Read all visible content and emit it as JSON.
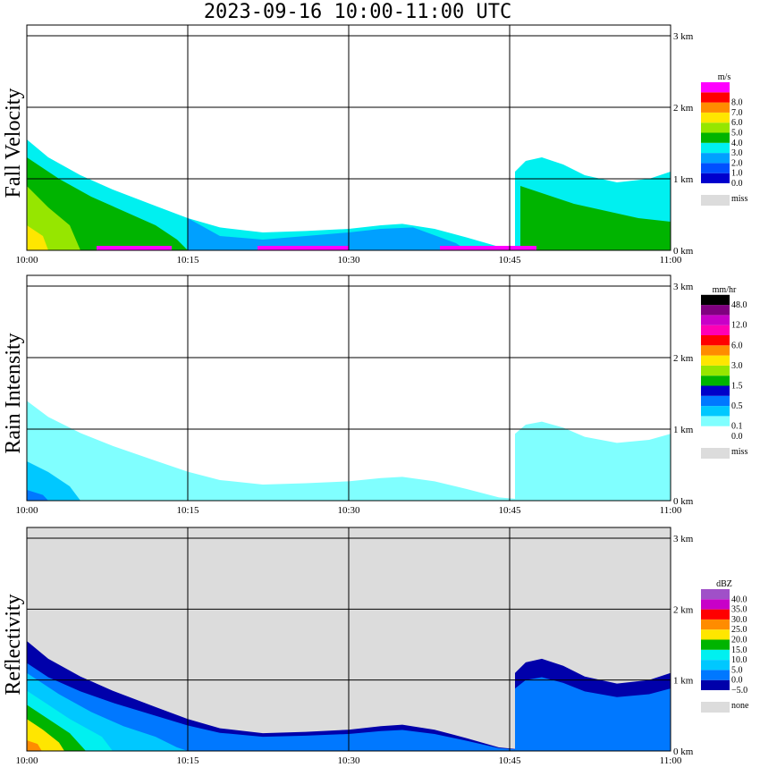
{
  "title": "2023-09-16   10:00-11:00 UTC",
  "x_tick_labels": [
    "10:00",
    "10:15",
    "10:30",
    "10:45",
    "11:00"
  ],
  "y_tick_labels": [
    "0 km",
    "1 km",
    "2 km",
    "3 km"
  ],
  "panels": [
    {
      "label": "Fall Velocity",
      "unit": "m/s",
      "missing_label": "miss",
      "background": "#ffffff",
      "scale": [
        {
          "label": "0.0",
          "color": "#0000cd"
        },
        {
          "label": "1.0",
          "color": "#0050ff"
        },
        {
          "label": "2.0",
          "color": "#00a0ff"
        },
        {
          "label": "3.0",
          "color": "#00f0f0"
        },
        {
          "label": "4.0",
          "color": "#00b400"
        },
        {
          "label": "5.0",
          "color": "#96e600"
        },
        {
          "label": "6.0",
          "color": "#ffe600"
        },
        {
          "label": "7.0",
          "color": "#ff8c00"
        },
        {
          "label": "8.0",
          "color": "#ff0000"
        },
        {
          "label": "",
          "color": "#ff00ff"
        }
      ]
    },
    {
      "label": "Rain Intensity",
      "unit": "mm/hr",
      "missing_label": "miss",
      "background": "#ffffff",
      "scale": [
        {
          "label": "0.0",
          "color": "#ffffff"
        },
        {
          "label": "0.1",
          "color": "#80ffff"
        },
        {
          "label": "",
          "color": "#00c8ff"
        },
        {
          "label": "0.5",
          "color": "#0078ff"
        },
        {
          "label": "",
          "color": "#0000c8"
        },
        {
          "label": "1.5",
          "color": "#00b400"
        },
        {
          "label": "",
          "color": "#96e600"
        },
        {
          "label": "3.0",
          "color": "#ffe600"
        },
        {
          "label": "",
          "color": "#ff8c00"
        },
        {
          "label": "6.0",
          "color": "#ff0000"
        },
        {
          "label": "",
          "color": "#ff00b4"
        },
        {
          "label": "12.0",
          "color": "#c800c8"
        },
        {
          "label": "",
          "color": "#800080"
        },
        {
          "label": "48.0",
          "color": "#000000"
        }
      ]
    },
    {
      "label": "Reflectivity",
      "unit": "dBZ",
      "missing_label": "none",
      "background": "#dcdcdc",
      "scale": [
        {
          "label": "−5.0",
          "color": "#0000aa"
        },
        {
          "label": "0.0",
          "color": "#0078ff"
        },
        {
          "label": "5.0",
          "color": "#00c8ff"
        },
        {
          "label": "10.0",
          "color": "#00f0f0"
        },
        {
          "label": "15.0",
          "color": "#00b400"
        },
        {
          "label": "20.0",
          "color": "#ffe600"
        },
        {
          "label": "25.0",
          "color": "#ff8c00"
        },
        {
          "label": "30.0",
          "color": "#ff0000"
        },
        {
          "label": "35.0",
          "color": "#c800c8"
        },
        {
          "label": "40.0",
          "color": "#a050c8"
        }
      ]
    }
  ],
  "chart_data": [
    {
      "type": "heatmap",
      "variable": "Fall Velocity",
      "unit": "m/s",
      "x_range": [
        "10:00",
        "11:00"
      ],
      "y_range_km": [
        0,
        3.0
      ],
      "echo_top_km": [
        {
          "time": "10:00",
          "top": 1.5
        },
        {
          "time": "10:05",
          "top": 1.0
        },
        {
          "time": "10:10",
          "top": 0.7
        },
        {
          "time": "10:15",
          "top": 0.4
        },
        {
          "time": "10:20",
          "top": 0.3
        },
        {
          "time": "10:25",
          "top": 0.25
        },
        {
          "time": "10:30",
          "top": 0.3
        },
        {
          "time": "10:35",
          "top": 0.35
        },
        {
          "time": "10:40",
          "top": 0.15
        },
        {
          "time": "10:45",
          "top": 0.02
        },
        {
          "time": "10:46",
          "top": 1.2
        },
        {
          "time": "10:50",
          "top": 1.0
        },
        {
          "time": "10:55",
          "top": 0.9
        },
        {
          "time": "11:00",
          "top": 1.1
        }
      ]
    },
    {
      "type": "heatmap",
      "variable": "Rain Intensity",
      "unit": "mm/hr",
      "x_range": [
        "10:00",
        "11:00"
      ],
      "y_range_km": [
        0,
        3.0
      ]
    },
    {
      "type": "heatmap",
      "variable": "Reflectivity",
      "unit": "dBZ",
      "x_range": [
        "10:00",
        "11:00"
      ],
      "y_range_km": [
        0,
        3.0
      ]
    }
  ]
}
